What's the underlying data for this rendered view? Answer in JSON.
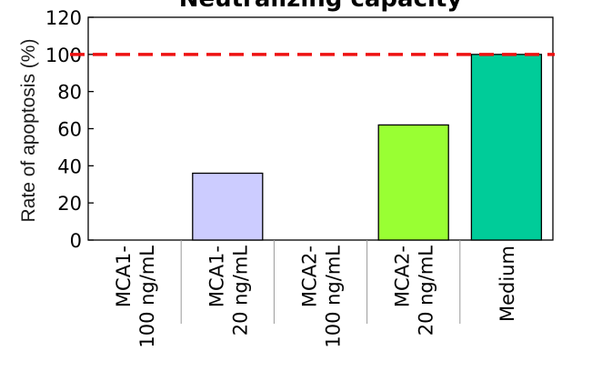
{
  "chart_data": {
    "type": "bar",
    "title": "Neutralizing capacity",
    "xlabel": "",
    "ylabel": "Rate of apoptosis (%)",
    "ylim": [
      0,
      120
    ],
    "yticks": [
      "0",
      "20",
      "40",
      "60",
      "80",
      "100",
      "120"
    ],
    "categories": [
      [
        "MCA1-",
        "100 ng/mL"
      ],
      [
        "MCA1-",
        "20 ng/mL"
      ],
      [
        "MCA2-",
        "100 ng/mL"
      ],
      [
        "MCA2-",
        "20 ng/mL"
      ],
      [
        "Medium"
      ]
    ],
    "values": [
      0,
      36,
      0,
      62,
      100
    ],
    "colors": [
      "#ffffff",
      "#ccccff",
      "#ffffff",
      "#99ff33",
      "#00cc99"
    ],
    "reference_line": {
      "y": 100,
      "color": "#ee1111",
      "style": "dashed"
    },
    "grid": false,
    "legend": "none"
  }
}
